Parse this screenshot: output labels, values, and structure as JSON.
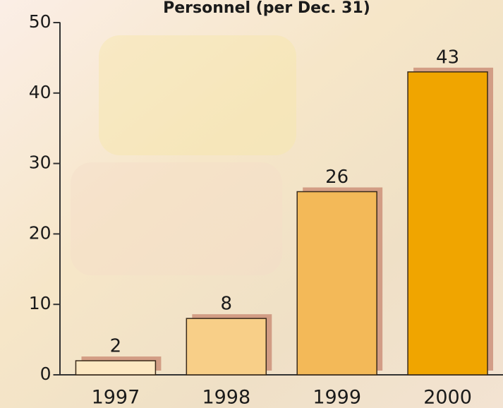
{
  "chart_data": {
    "type": "bar",
    "title": "Personnel (per Dec. 31)",
    "categories": [
      "1997",
      "1998",
      "1999",
      "2000"
    ],
    "values": [
      2,
      8,
      26,
      43
    ],
    "colors": [
      "#fde8c2",
      "#f8cf88",
      "#f3b958",
      "#f0a500"
    ],
    "ylim": [
      0,
      50
    ],
    "yticks": [
      0,
      10,
      20,
      30,
      40,
      50
    ]
  }
}
